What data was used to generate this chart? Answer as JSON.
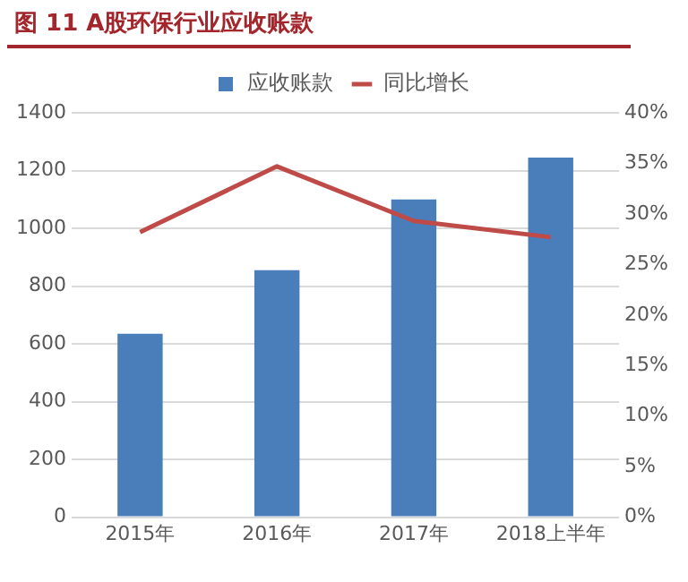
{
  "chart_data": {
    "type": "bar",
    "title": "图 11  A股环保行业应收账款",
    "categories": [
      "2015年",
      "2016年",
      "2017年",
      "2018上半年"
    ],
    "series": [
      {
        "name": "应收账款",
        "color": "#4a7ebb",
        "values": [
          635,
          855,
          1100,
          1245
        ]
      },
      {
        "name": "同比增长",
        "type": "line",
        "color": "#be4b48",
        "axis": "y2",
        "values": [
          28.2,
          34.7,
          29.3,
          27.7
        ]
      }
    ],
    "ylim": [
      0,
      1400
    ],
    "yticks": [
      0,
      200,
      400,
      600,
      800,
      1000,
      1200,
      1400
    ],
    "y2lim": [
      0,
      40
    ],
    "y2ticks": [
      {
        "value": 0,
        "label": "0%"
      },
      {
        "value": 5,
        "label": "5%"
      },
      {
        "value": 10,
        "label": "10%"
      },
      {
        "value": 15,
        "label": "15%"
      },
      {
        "value": 20,
        "label": "20%"
      },
      {
        "value": 25,
        "label": "25%"
      },
      {
        "value": 30,
        "label": "30%"
      },
      {
        "value": 35,
        "label": "35%"
      },
      {
        "value": 40,
        "label": "40%"
      }
    ],
    "grid": "y",
    "legend": "top",
    "marker": "none",
    "line_style": "solid"
  }
}
